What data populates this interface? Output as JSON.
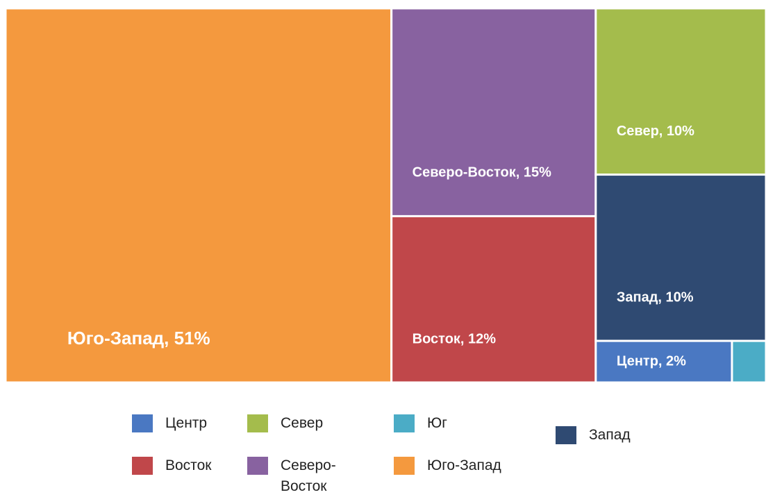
{
  "chart_data": {
    "type": "treemap",
    "categories": [
      "Центр",
      "Восток",
      "Север",
      "Северо-Восток",
      "Юг",
      "Юго-Запад",
      "Запад"
    ],
    "values": [
      2,
      12,
      10,
      15,
      0.5,
      51,
      10
    ],
    "value_labels": [
      "Центр, 2%",
      "Восток, 12%",
      "Север, 10%",
      "Северо-Восток, 15%",
      null,
      "Юго-Запад, 51%",
      "Запад, 10%"
    ],
    "colors": [
      "#4a78c2",
      "#c0474a",
      "#a4bc4c",
      "#8862a0",
      "#4bacc6",
      "#f4993e",
      "#2f4a72"
    ],
    "legend": "bottom"
  }
}
